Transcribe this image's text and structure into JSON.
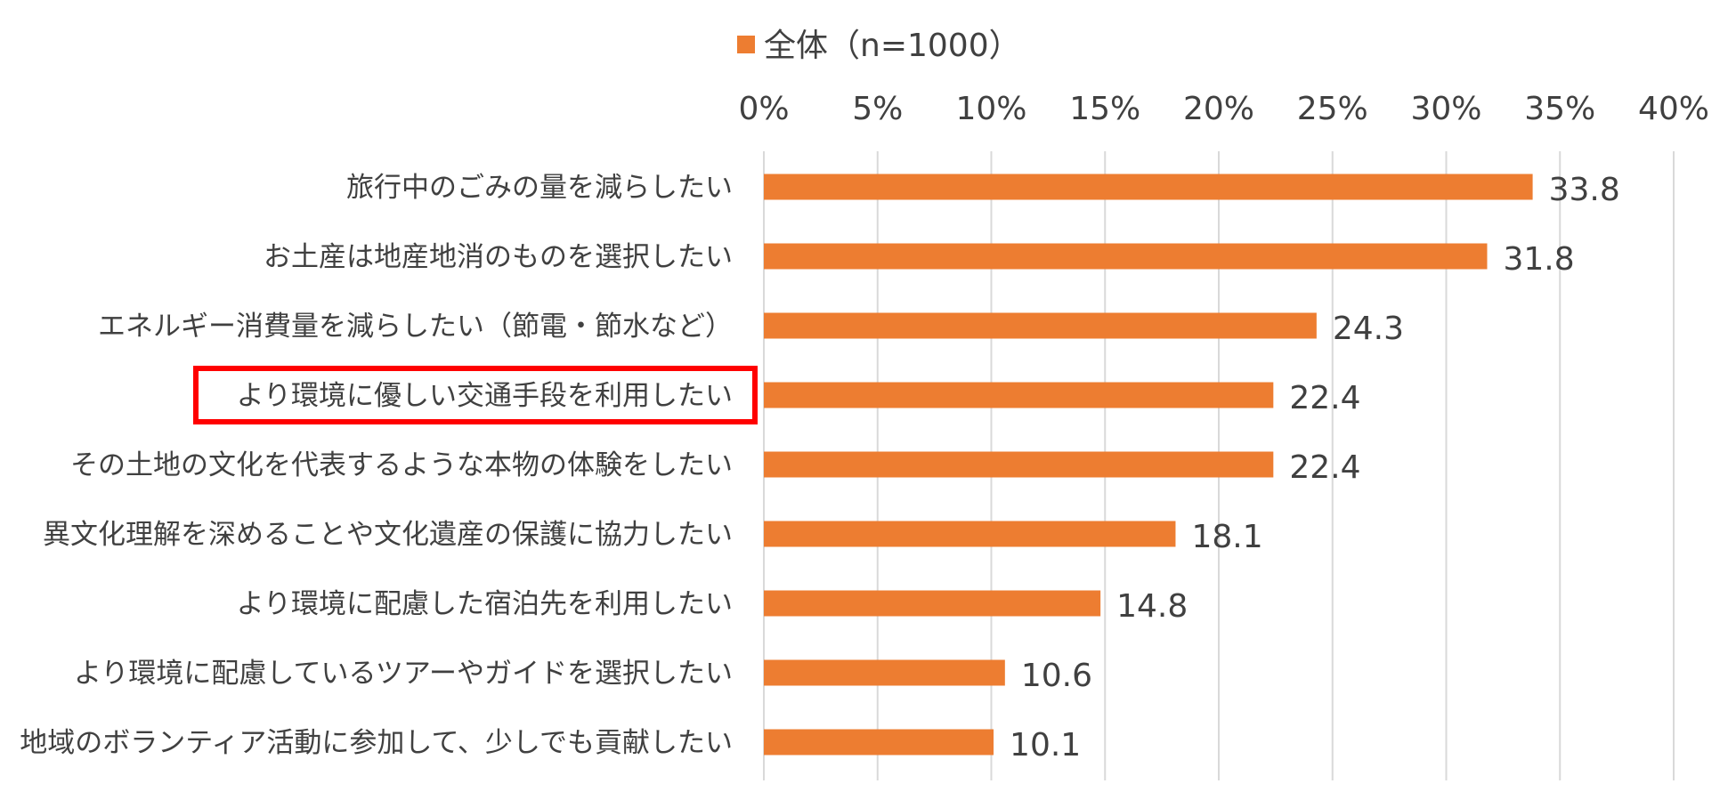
{
  "chart_data": {
    "type": "bar",
    "orientation": "horizontal",
    "categories": [
      "旅行中のごみの量を減らしたい",
      "お土産は地産地消のものを選択したい",
      "エネルギー消費量を減らしたい（節電・節水など）",
      "より環境に優しい交通手段を利用したい",
      "その土地の文化を代表するような本物の体験をしたい",
      "異文化理解を深めることや文化遺産の保護に協力したい",
      "より環境に配慮した宿泊先を利用したい",
      "より環境に配慮しているツアーやガイドを選択したい",
      "地域のボランティア活動に参加して、少しでも貢献したい"
    ],
    "series": [
      {
        "name": "全体（n=1000）",
        "color": "#ED7D31",
        "values": [
          33.8,
          31.8,
          24.3,
          22.4,
          22.4,
          18.1,
          14.8,
          10.6,
          10.1
        ],
        "labels": [
          "33.8",
          "31.8",
          "24.3",
          "22.4",
          "22.4",
          "18.1",
          "14.8",
          "10.6",
          "10.1"
        ]
      }
    ],
    "xlim": [
      0,
      40
    ],
    "ticks": [
      0,
      5,
      10,
      15,
      20,
      25,
      30,
      35,
      40
    ],
    "tick_labels": [
      "0%",
      "5%",
      "10%",
      "15%",
      "20%",
      "25%",
      "30%",
      "35%",
      "40%"
    ],
    "x_axis_position": "top",
    "grid": "vertical",
    "legend_position": "top",
    "highlight": {
      "category_index": 3,
      "color": "#FF0000"
    },
    "gridline_color": "#D9D9D9",
    "text_color": "#404040"
  }
}
